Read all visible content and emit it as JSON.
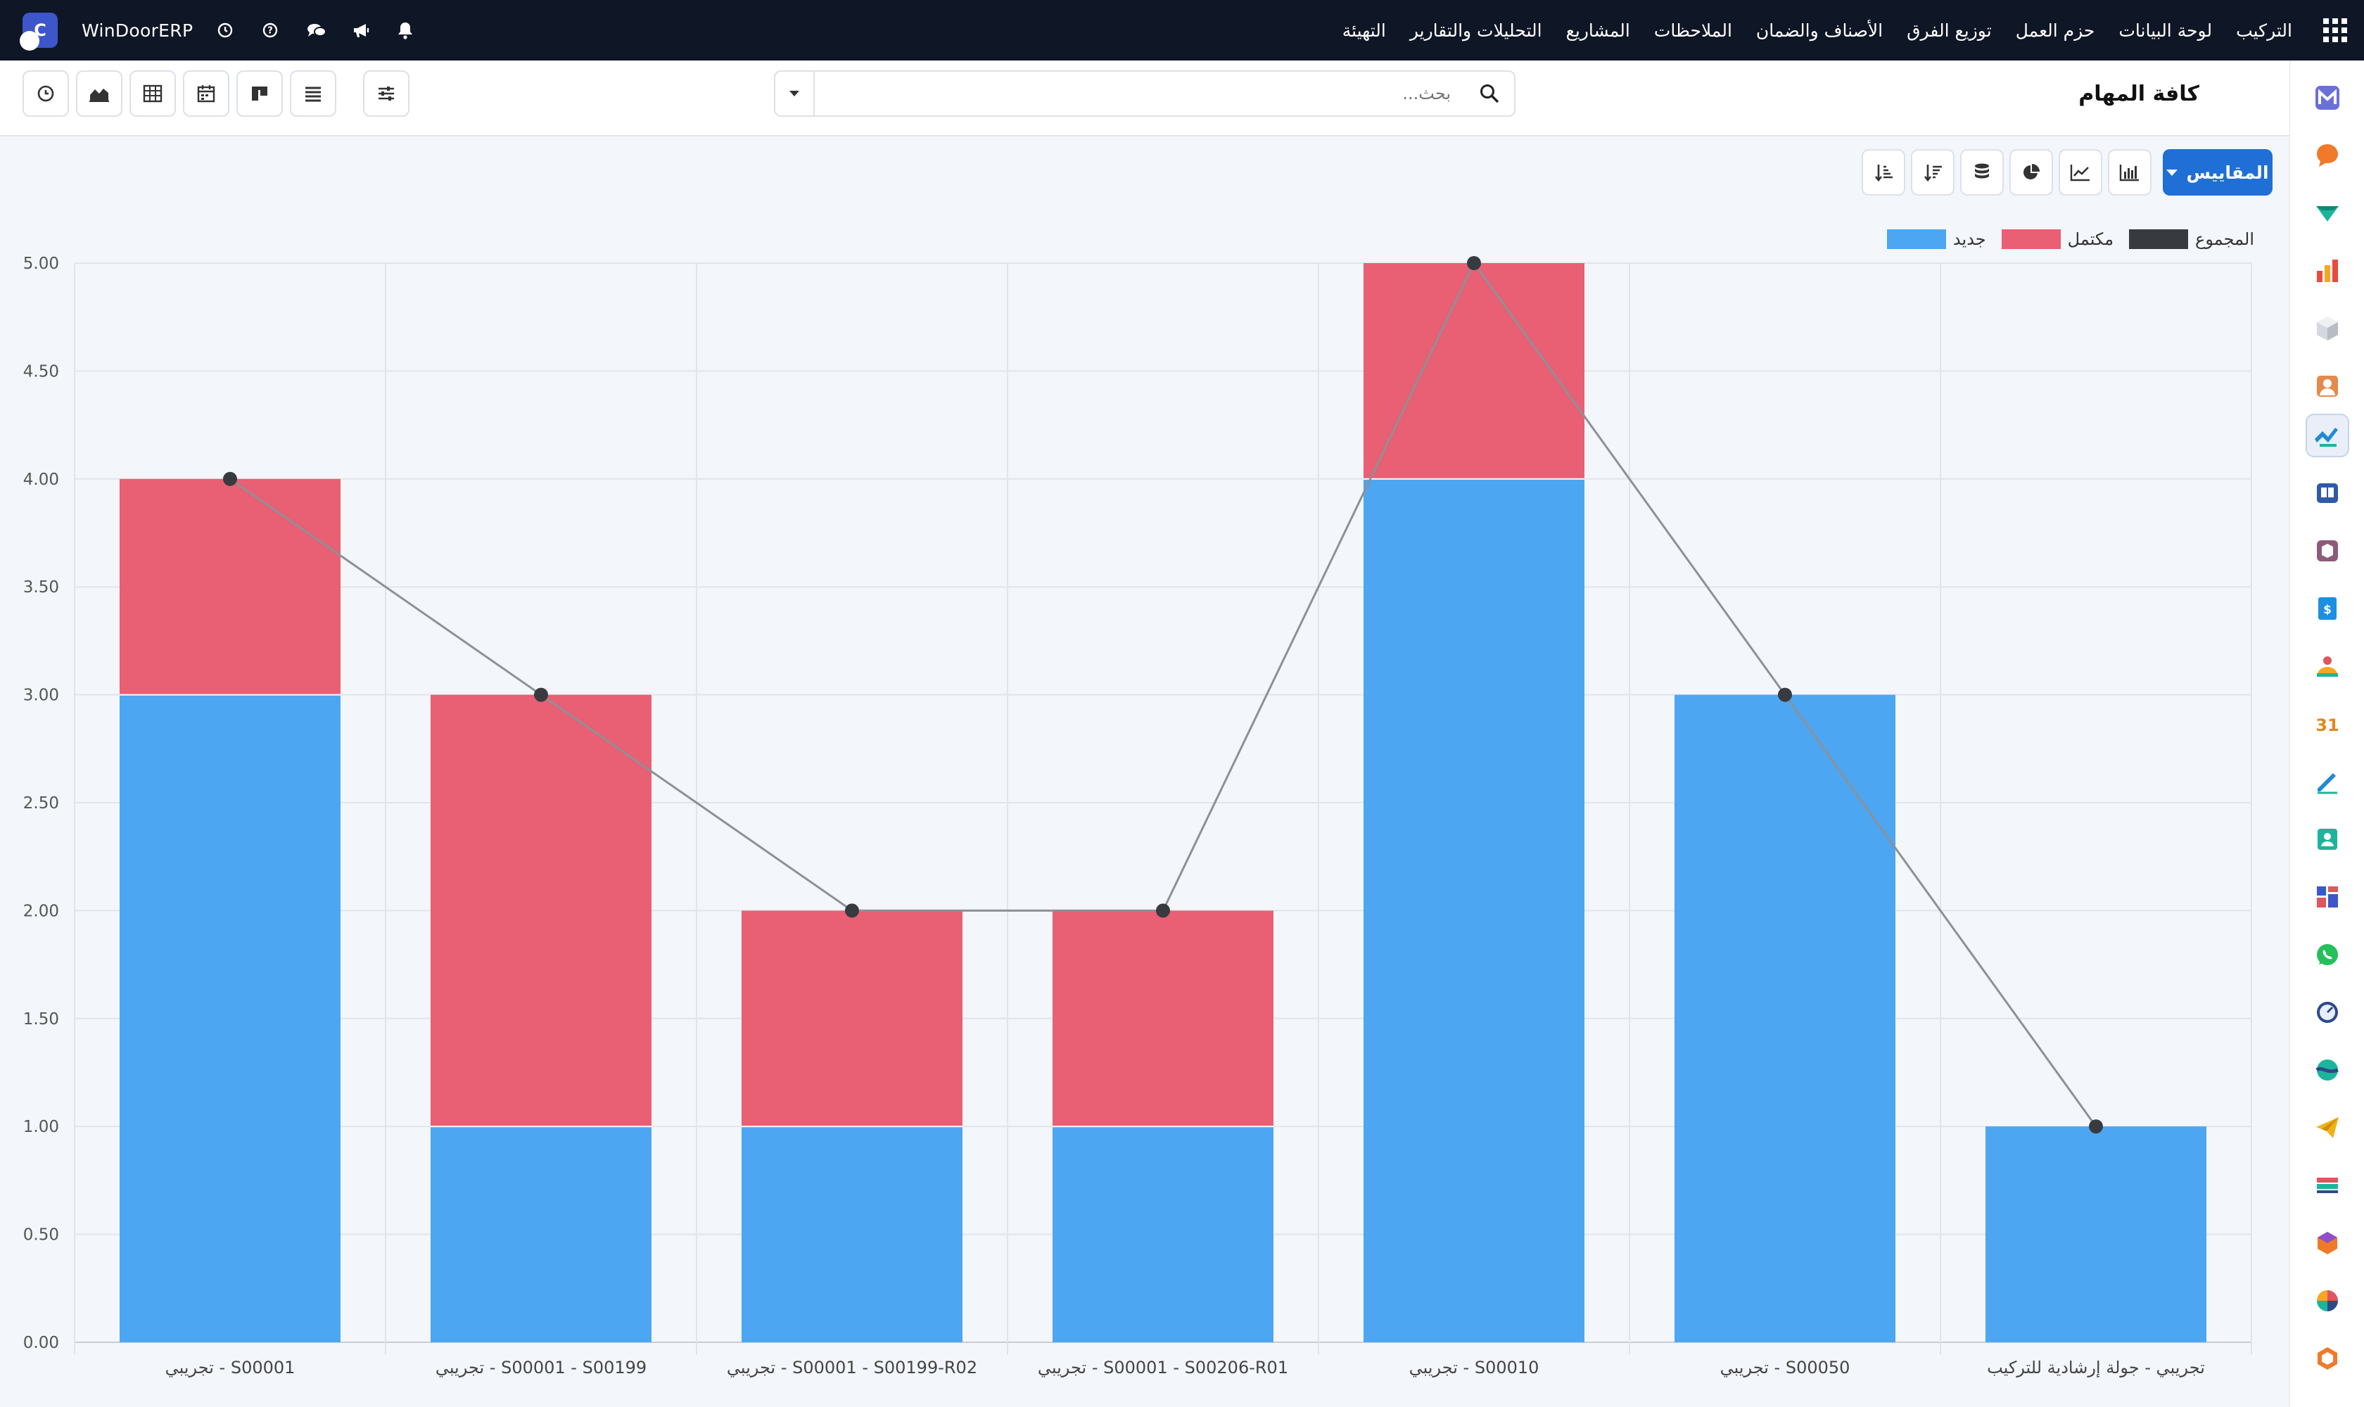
{
  "topbar": {
    "brand": "WinDoorERP",
    "brand_initial": "C",
    "menu": [
      "التركيب",
      "لوحة البيانات",
      "حزم العمل",
      "توزيع الفرق",
      "الأصناف والضمان",
      "الملاحظات",
      "المشاريع",
      "التحليلات والتقارير",
      "التهيئة"
    ]
  },
  "page": {
    "title": "كافة المهام",
    "search_placeholder": "بحث..."
  },
  "chart_toolbar": {
    "measures_label": "المقاييس"
  },
  "colors": {
    "new": "#4da6f2",
    "done": "#e95f73",
    "total": "#373b40"
  },
  "chart_data": {
    "type": "bar",
    "stacked": true,
    "categories": [
      "S00001 - تجريبي",
      "S00001 - S00199 - تجريبي",
      "S00001 - S00199-R02 - تجريبي",
      "S00001 - S00206-R01 - تجريبي",
      "S00010 - تجريبي",
      "S00050 - تجريبي",
      "تجريبي - جولة إرشادية للتركيب"
    ],
    "series": [
      {
        "name": "جديد",
        "values": [
          3,
          1,
          1,
          1,
          4,
          3,
          1
        ]
      },
      {
        "name": "مكتمل",
        "values": [
          1,
          2,
          1,
          1,
          1,
          0,
          0
        ]
      },
      {
        "name": "المجموع",
        "type": "line",
        "values": [
          4,
          3,
          2,
          2,
          5,
          3,
          1
        ]
      }
    ],
    "ylim": [
      0,
      5
    ],
    "yticks": [
      "0.00",
      "0.50",
      "1.00",
      "1.50",
      "2.00",
      "2.50",
      "3.00",
      "3.50",
      "4.00",
      "4.50",
      "5.00"
    ],
    "grid": true,
    "legend": "top-right"
  }
}
